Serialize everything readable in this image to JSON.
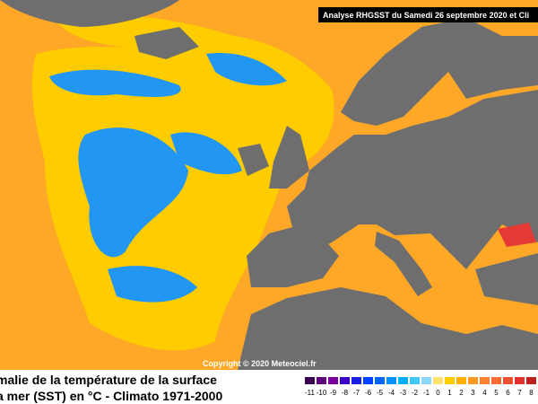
{
  "header": {
    "title": "Analyse RHGSST  du Samedi 26 septembre 2020 et Cli"
  },
  "copyright": "Copyright © 2020 Meteociel.fr",
  "caption": {
    "lines": [
      "malie de la température de la surface",
      "a mer (SST) en °C - Climato 1971-2000"
    ]
  },
  "legend": {
    "labels": [
      -11,
      -10,
      -9,
      -8,
      -7,
      -6,
      -5,
      -4,
      -3,
      -2,
      -1,
      0,
      1,
      2,
      3,
      4,
      5,
      6,
      7,
      8
    ],
    "colors": [
      "#3a0050",
      "#5a007a",
      "#7a00a0",
      "#3b00c8",
      "#1a20e0",
      "#0040ff",
      "#0066ff",
      "#0090ff",
      "#00b0ff",
      "#40c8ff",
      "#8ad8ff",
      "#ffe070",
      "#ffcc00",
      "#ffb000",
      "#ff9a20",
      "#ff8030",
      "#ff6a30",
      "#f05030",
      "#e03030",
      "#c02020"
    ]
  }
}
